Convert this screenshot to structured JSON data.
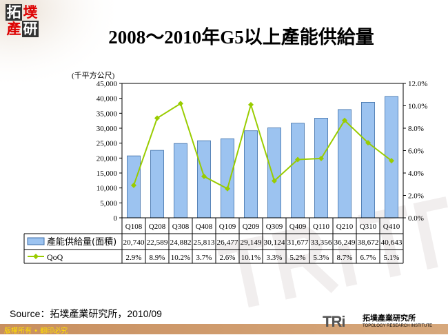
{
  "logo": {
    "chars": [
      "拓",
      "墣",
      "產",
      "研"
    ]
  },
  "chart_data": {
    "type": "bar+line",
    "title": "2008～2010年G5以上產能供給量",
    "ylabel": "(千平方公尺)",
    "categories": [
      "Q108",
      "Q208",
      "Q308",
      "Q408",
      "Q109",
      "Q209",
      "Q309",
      "Q409",
      "Q110",
      "Q210",
      "Q310",
      "Q410"
    ],
    "series": [
      {
        "name": "產能供給量(面積)",
        "type": "bar",
        "axis": "left",
        "color": "#9cc3f0",
        "values": [
          20740,
          22589,
          24882,
          25813,
          26477,
          29149,
          30124,
          31677,
          33356,
          36249,
          38672,
          40643
        ],
        "labels": [
          "20,740",
          "22,589",
          "24,882",
          "25,813",
          "26,477",
          "29,149",
          "30,124",
          "31,677",
          "33,356",
          "36,249",
          "38,672",
          "40,643"
        ]
      },
      {
        "name": "QoQ",
        "type": "line",
        "axis": "right",
        "color": "#99cc00",
        "values": [
          2.9,
          8.9,
          10.2,
          3.7,
          2.6,
          10.1,
          3.3,
          5.2,
          5.3,
          8.7,
          6.7,
          5.1
        ],
        "labels": [
          "2.9%",
          "8.9%",
          "10.2%",
          "3.7%",
          "2.6%",
          "10.1%",
          "3.3%",
          "5.2%",
          "5.3%",
          "8.7%",
          "6.7%",
          "5.1%"
        ]
      }
    ],
    "ylim": [
      0,
      45000
    ],
    "y2lim": [
      0,
      12
    ],
    "yticks": [
      "0",
      "5,000",
      "10,000",
      "15,000",
      "20,000",
      "25,000",
      "30,000",
      "35,000",
      "40,000",
      "45,000"
    ],
    "y2ticks": [
      "0.0%",
      "2.0%",
      "4.0%",
      "6.0%",
      "8.0%",
      "10.0%",
      "12.0%"
    ],
    "grid": false,
    "legend": "data-table"
  },
  "source": "Source：拓墣產業研究所，2010/09",
  "footer": {
    "copyright": "版權所有 • 翻印必究",
    "brand": "TRi",
    "brand_cn": "拓墣產業研究所",
    "brand_en": "TOPOLOGY RESEARCH INSTITUTE"
  }
}
